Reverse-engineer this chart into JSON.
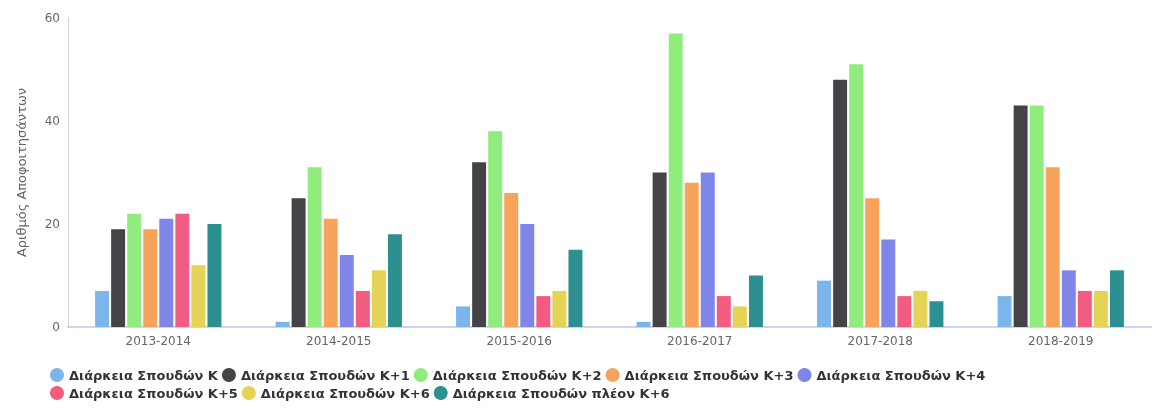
{
  "chart_data": {
    "type": "bar",
    "ylabel": "Αριθμός Αποφοιτησάντων",
    "categories": [
      "2013-2014",
      "2014-2015",
      "2015-2016",
      "2016-2017",
      "2017-2018",
      "2018-2019"
    ],
    "series": [
      {
        "name": "Διάρκεια Σπουδών Κ",
        "color": "#7cb5ec",
        "values": [
          7,
          1,
          4,
          1,
          9,
          6
        ]
      },
      {
        "name": "Διάρκεια Σπουδών Κ+1",
        "color": "#434348",
        "values": [
          19,
          25,
          32,
          30,
          48,
          43
        ]
      },
      {
        "name": "Διάρκεια Σπουδών Κ+2",
        "color": "#90ed7d",
        "values": [
          22,
          31,
          38,
          57,
          51,
          43
        ]
      },
      {
        "name": "Διάρκεια Σπουδών Κ+3",
        "color": "#f7a35c",
        "values": [
          19,
          21,
          26,
          28,
          25,
          31
        ]
      },
      {
        "name": "Διάρκεια Σπουδών Κ+4",
        "color": "#8085e9",
        "values": [
          21,
          14,
          20,
          30,
          17,
          11
        ]
      },
      {
        "name": "Διάρκεια Σπουδών Κ+5",
        "color": "#f15c80",
        "values": [
          22,
          7,
          6,
          6,
          6,
          7
        ]
      },
      {
        "name": "Διάρκεια Σπουδών Κ+6",
        "color": "#e4d354",
        "values": [
          12,
          11,
          7,
          4,
          7,
          7
        ]
      },
      {
        "name": "Διάρκεια Σπουδών πλέον Κ+6",
        "color": "#2b908f",
        "values": [
          20,
          18,
          15,
          10,
          5,
          11
        ]
      }
    ],
    "ylim": [
      0,
      60
    ],
    "yticks": [
      0,
      20,
      40,
      60
    ],
    "grid": false,
    "legend": "bottom"
  }
}
